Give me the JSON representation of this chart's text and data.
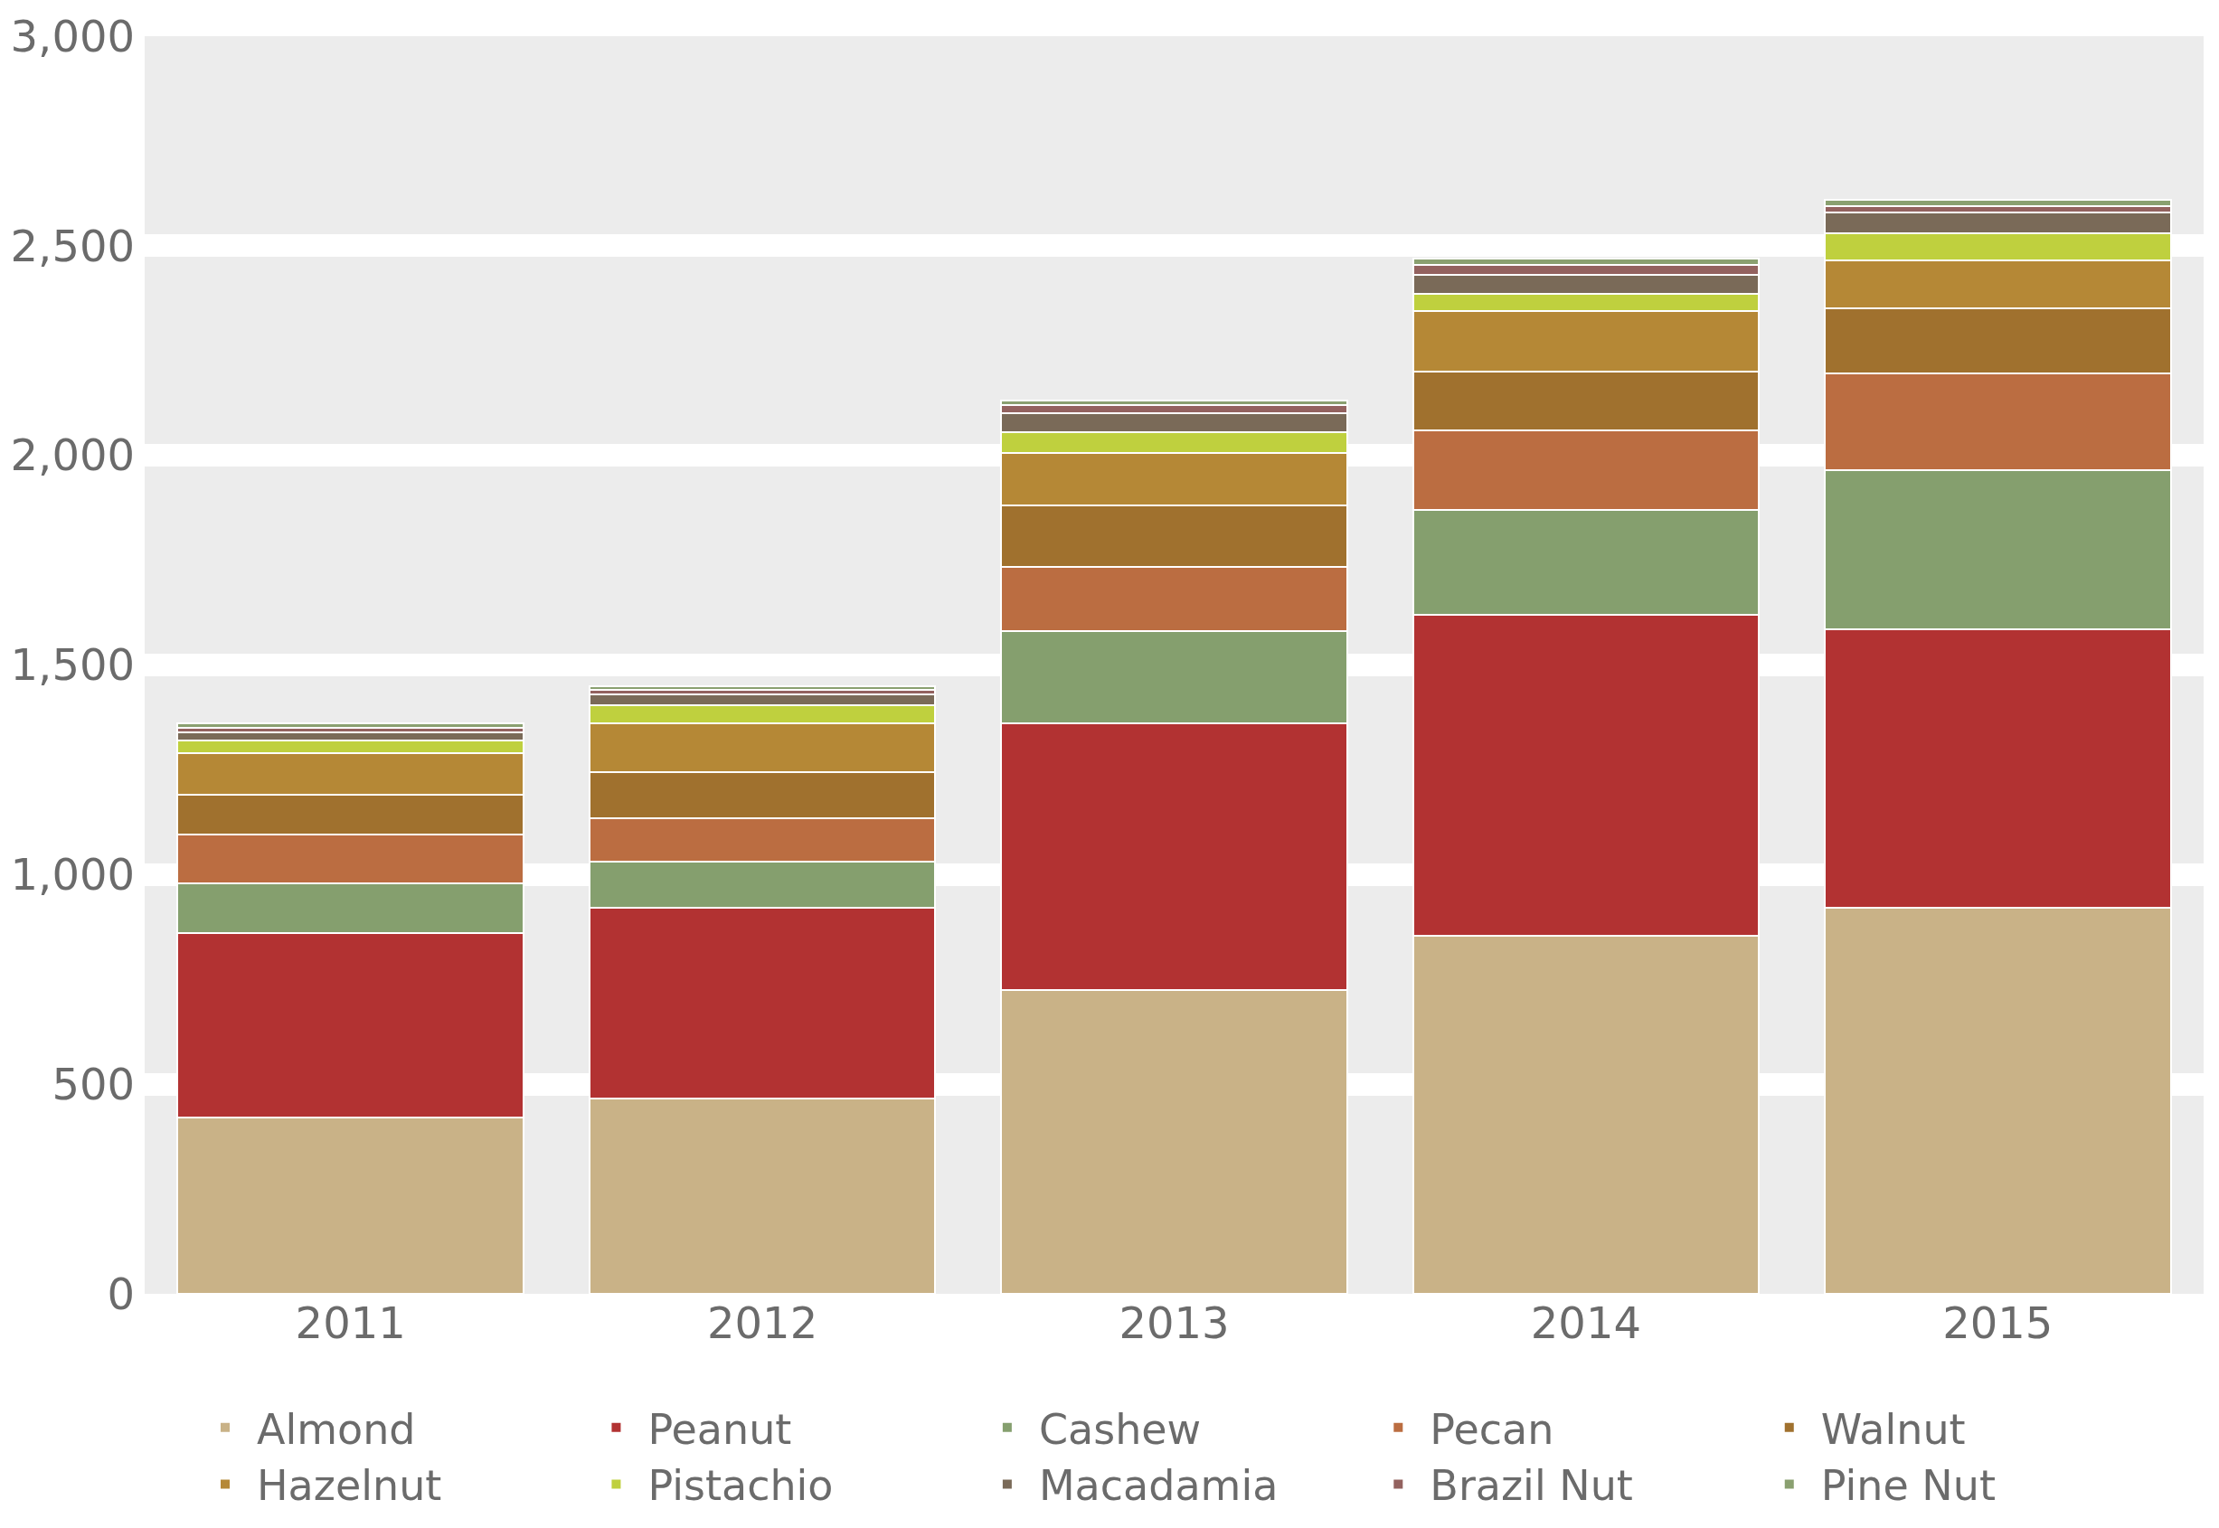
{
  "chart_data": {
    "type": "bar",
    "stacked": true,
    "categories": [
      "2011",
      "2012",
      "2013",
      "2014",
      "2015"
    ],
    "series": [
      {
        "name": "Almond",
        "color": "#c9b287",
        "values": [
          420,
          465,
          725,
          855,
          920
        ]
      },
      {
        "name": "Peanut",
        "color": "#b23232",
        "values": [
          440,
          455,
          635,
          765,
          665
        ]
      },
      {
        "name": "Cashew",
        "color": "#859f6e",
        "values": [
          120,
          110,
          220,
          250,
          380
        ]
      },
      {
        "name": "Pecan",
        "color": "#bb6d41",
        "values": [
          115,
          105,
          155,
          190,
          230
        ]
      },
      {
        "name": "Walnut",
        "color": "#a0712e",
        "values": [
          95,
          110,
          145,
          140,
          155
        ]
      },
      {
        "name": "Hazelnut",
        "color": "#b58836",
        "values": [
          100,
          115,
          125,
          145,
          115
        ]
      },
      {
        "name": "Pistachio",
        "color": "#bfd03e",
        "values": [
          30,
          45,
          50,
          40,
          65
        ]
      },
      {
        "name": "Macadamia",
        "color": "#7a6a58",
        "values": [
          20,
          25,
          45,
          45,
          50
        ]
      },
      {
        "name": "Brazil Nut",
        "color": "#93625f",
        "values": [
          10,
          10,
          20,
          25,
          15
        ]
      },
      {
        "name": "Pine Nut",
        "color": "#8aa070",
        "values": [
          10,
          10,
          10,
          15,
          15
        ]
      }
    ],
    "ylim": [
      0,
      3000
    ],
    "yticks": [
      0,
      500,
      {
        "value": 1000,
        "label": "1,000"
      },
      {
        "value": 1500,
        "label": "1,500"
      },
      {
        "value": 2000,
        "label": "2,000"
      },
      {
        "value": 2500,
        "label": "2,500"
      },
      {
        "value": 3000,
        "label": "3,000"
      }
    ],
    "grid": "y",
    "legend": "bottom"
  }
}
